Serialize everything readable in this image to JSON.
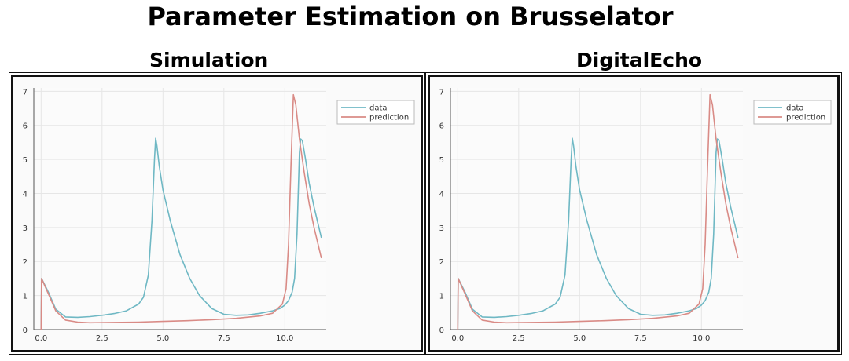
{
  "title": "Parameter Estimation on Brusselator",
  "panels": [
    {
      "subtitle": "Simulation"
    },
    {
      "subtitle": "DigitalEcho"
    }
  ],
  "chart_data": [
    {
      "type": "line",
      "xlim": [
        -0.3,
        11.7
      ],
      "ylim": [
        0,
        7.1
      ],
      "xticks": [
        0.0,
        2.5,
        5.0,
        7.5,
        10.0
      ],
      "xtick_labels": [
        "0.0",
        "2.5",
        "5.0",
        "7.5",
        "10.0"
      ],
      "yticks": [
        0,
        1,
        2,
        3,
        4,
        5,
        6,
        7
      ],
      "ytick_labels": [
        "0",
        "1",
        "2",
        "3",
        "4",
        "5",
        "6",
        "7"
      ],
      "grid": true,
      "legend_position": "top-right",
      "series": [
        {
          "name": "data",
          "color": "#6fb8c4",
          "x": [
            0.0,
            0.02,
            0.3,
            0.6,
            1.0,
            1.5,
            2.0,
            2.5,
            3.0,
            3.5,
            4.0,
            4.2,
            4.4,
            4.55,
            4.65,
            4.7,
            4.75,
            4.85,
            5.0,
            5.3,
            5.7,
            6.1,
            6.5,
            7.0,
            7.5,
            8.0,
            8.5,
            9.0,
            9.5,
            9.8,
            10.0,
            10.15,
            10.3,
            10.4,
            10.5,
            10.6,
            10.65,
            10.72,
            10.85,
            11.0,
            11.2,
            11.5
          ],
          "y": [
            0.0,
            1.5,
            1.1,
            0.6,
            0.37,
            0.36,
            0.38,
            0.42,
            0.47,
            0.55,
            0.75,
            0.95,
            1.6,
            3.2,
            5.0,
            5.62,
            5.4,
            4.8,
            4.1,
            3.2,
            2.2,
            1.5,
            1.0,
            0.62,
            0.45,
            0.42,
            0.43,
            0.48,
            0.55,
            0.62,
            0.72,
            0.85,
            1.1,
            1.5,
            2.8,
            5.2,
            5.6,
            5.55,
            5.0,
            4.3,
            3.6,
            2.7
          ]
        },
        {
          "name": "prediction",
          "color": "#d98b86",
          "x": [
            0.0,
            0.02,
            0.3,
            0.6,
            1.0,
            1.5,
            2.0,
            3.0,
            4.0,
            5.0,
            6.0,
            7.0,
            8.0,
            9.0,
            9.5,
            9.9,
            10.05,
            10.15,
            10.25,
            10.35,
            10.45,
            10.6,
            10.8,
            11.0,
            11.2,
            11.5
          ],
          "y": [
            0.0,
            1.5,
            1.05,
            0.55,
            0.28,
            0.22,
            0.2,
            0.21,
            0.22,
            0.24,
            0.26,
            0.29,
            0.33,
            0.4,
            0.48,
            0.75,
            1.2,
            2.5,
            4.8,
            6.9,
            6.6,
            5.6,
            4.6,
            3.7,
            3.0,
            2.1
          ]
        }
      ]
    },
    {
      "type": "line",
      "xlim": [
        -0.3,
        11.7
      ],
      "ylim": [
        0,
        7.1
      ],
      "xticks": [
        0.0,
        2.5,
        5.0,
        7.5,
        10.0
      ],
      "xtick_labels": [
        "0.0",
        "2.5",
        "5.0",
        "7.5",
        "10.0"
      ],
      "yticks": [
        0,
        1,
        2,
        3,
        4,
        5,
        6,
        7
      ],
      "ytick_labels": [
        "0",
        "1",
        "2",
        "3",
        "4",
        "5",
        "6",
        "7"
      ],
      "grid": true,
      "legend_position": "top-right",
      "series": [
        {
          "name": "data",
          "color": "#6fb8c4",
          "x": [
            0.0,
            0.02,
            0.3,
            0.6,
            1.0,
            1.5,
            2.0,
            2.5,
            3.0,
            3.5,
            4.0,
            4.2,
            4.4,
            4.55,
            4.65,
            4.7,
            4.75,
            4.85,
            5.0,
            5.3,
            5.7,
            6.1,
            6.5,
            7.0,
            7.5,
            8.0,
            8.5,
            9.0,
            9.5,
            9.8,
            10.0,
            10.15,
            10.3,
            10.4,
            10.5,
            10.6,
            10.65,
            10.72,
            10.85,
            11.0,
            11.2,
            11.5
          ],
          "y": [
            0.0,
            1.5,
            1.1,
            0.6,
            0.37,
            0.36,
            0.38,
            0.42,
            0.47,
            0.55,
            0.75,
            0.95,
            1.6,
            3.2,
            5.0,
            5.62,
            5.4,
            4.8,
            4.1,
            3.2,
            2.2,
            1.5,
            1.0,
            0.62,
            0.45,
            0.42,
            0.43,
            0.48,
            0.55,
            0.62,
            0.72,
            0.85,
            1.1,
            1.5,
            2.8,
            5.2,
            5.6,
            5.55,
            5.0,
            4.3,
            3.6,
            2.7
          ]
        },
        {
          "name": "prediction",
          "color": "#d98b86",
          "x": [
            0.0,
            0.02,
            0.3,
            0.6,
            1.0,
            1.5,
            2.0,
            3.0,
            4.0,
            5.0,
            6.0,
            7.0,
            8.0,
            9.0,
            9.5,
            9.9,
            10.05,
            10.15,
            10.25,
            10.35,
            10.45,
            10.6,
            10.8,
            11.0,
            11.2,
            11.5
          ],
          "y": [
            0.0,
            1.5,
            1.05,
            0.55,
            0.28,
            0.22,
            0.2,
            0.21,
            0.22,
            0.24,
            0.26,
            0.29,
            0.33,
            0.4,
            0.48,
            0.75,
            1.2,
            2.5,
            4.8,
            6.9,
            6.6,
            5.6,
            4.6,
            3.7,
            3.0,
            2.1
          ]
        }
      ]
    }
  ]
}
